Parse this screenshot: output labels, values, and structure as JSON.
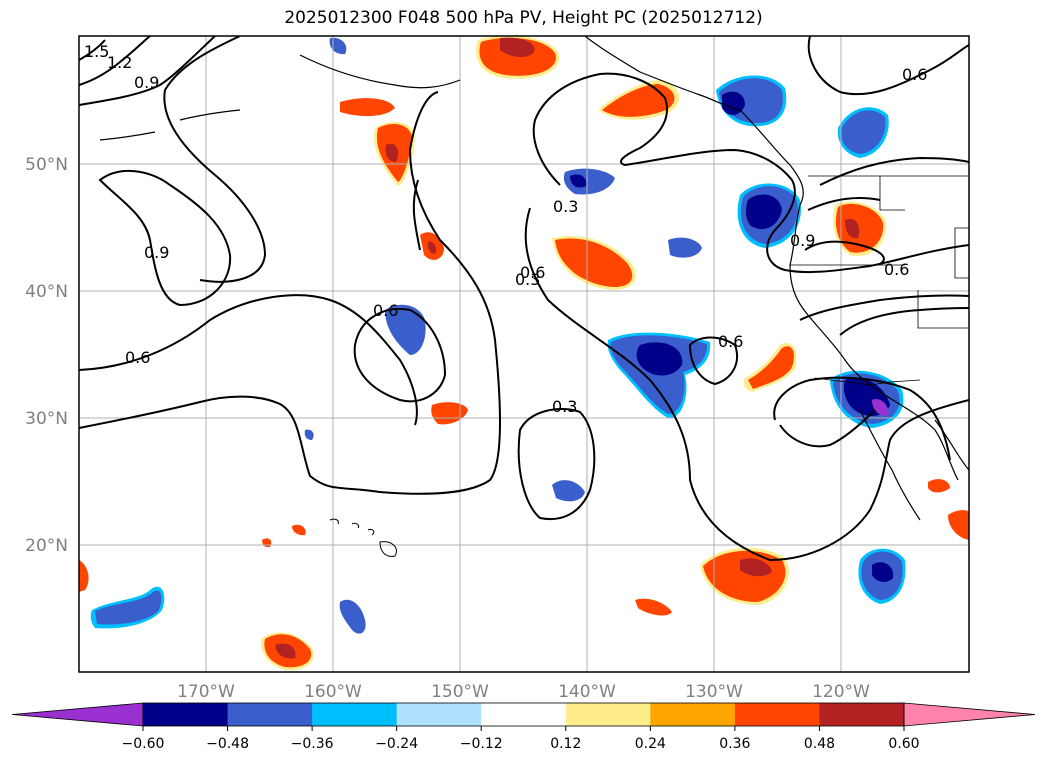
{
  "title": "2025012300 F048 500 hPa PV, Height PC (2025012712)",
  "latitude_labels": [
    "50°N",
    "40°N",
    "30°N",
    "20°N"
  ],
  "longitude_labels": [
    "170°W",
    "160°W",
    "150°W",
    "140°W",
    "130°W",
    "120°W"
  ],
  "contour_labels": [
    "1.5",
    "1.2",
    "0.9",
    "0.9",
    "0.6",
    "0.6",
    "0.3",
    "0.3",
    "0.6",
    "0.3",
    "0.6",
    "0.9",
    "0.6",
    "0.6"
  ],
  "colorbar": {
    "tick_labels": [
      "−0.60",
      "−0.48",
      "−0.36",
      "−0.24",
      "−0.12",
      "0.12",
      "0.24",
      "0.36",
      "0.48",
      "0.60"
    ],
    "colors": [
      "#9b30d0",
      "#00008b",
      "#3a5fcd",
      "#00bfff",
      "#b0e2ff",
      "#ffffff",
      "#ffec8b",
      "#ffa500",
      "#ff4500",
      "#b22222",
      "#ff83aa"
    ]
  },
  "colors": {
    "neg_strong": "#00008b",
    "neg_mid": "#3a5fcd",
    "neg_light": "#00bfff",
    "pos_light": "#ffec8b",
    "pos_mid": "#ff4500",
    "pos_strong": "#b22222",
    "purple": "#9b30d0"
  }
}
